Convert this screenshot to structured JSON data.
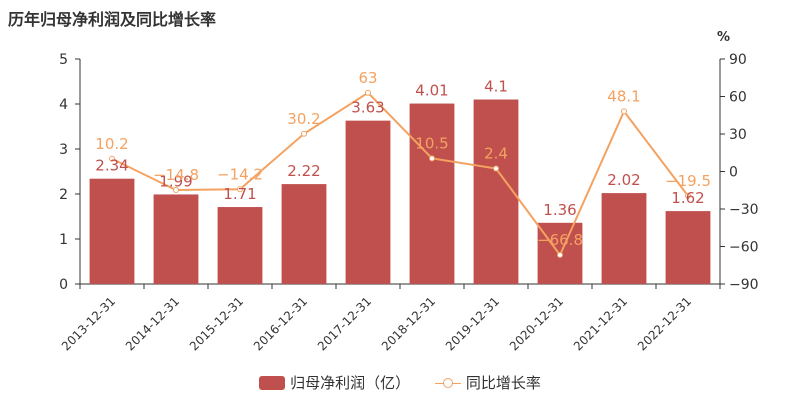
{
  "title": "历年归母净利润及同比增长率",
  "colors": {
    "bar": "#c0504d",
    "line": "#f4a261",
    "axis": "#333333",
    "grid": "#cccccc"
  },
  "legend": {
    "bar_label": "归母净利润（亿）",
    "line_label": "同比增长率"
  },
  "chart_data": {
    "type": "bar",
    "title": "历年归母净利润及同比增长率",
    "categories": [
      "2013-12-31",
      "2014-12-31",
      "2015-12-31",
      "2016-12-31",
      "2017-12-31",
      "2018-12-31",
      "2019-12-31",
      "2020-12-31",
      "2021-12-31",
      "2022-12-31"
    ],
    "series": [
      {
        "name": "归母净利润（亿）",
        "type": "bar",
        "axis": "left",
        "values": [
          2.34,
          1.99,
          1.71,
          2.22,
          3.63,
          4.01,
          4.1,
          1.36,
          2.02,
          1.62
        ],
        "labels": [
          "2.34",
          "1.99",
          "1.71",
          "2.22",
          "3.63",
          "4.01",
          "4.1",
          "1.36",
          "2.02",
          "1.62"
        ]
      },
      {
        "name": "同比增长率",
        "type": "line",
        "axis": "right",
        "values": [
          10.2,
          -14.8,
          -14.2,
          30.2,
          63,
          10.5,
          2.4,
          -66.8,
          48.1,
          -19.5
        ],
        "labels": [
          "10.2",
          "−14.8",
          "−14.2",
          "30.2",
          "63",
          "10.5",
          "2.4",
          "−66.8",
          "48.1",
          "−19.5"
        ]
      }
    ],
    "left_axis": {
      "ylim": [
        0,
        5
      ],
      "ticks": [
        "0",
        "1",
        "2",
        "3",
        "4",
        "5"
      ]
    },
    "right_axis": {
      "unit": "%",
      "ylim": [
        -90,
        90
      ],
      "ticks": [
        "−90",
        "−60",
        "−30",
        "0",
        "30",
        "60",
        "90"
      ]
    },
    "grid": false,
    "legend_position": "bottom"
  }
}
